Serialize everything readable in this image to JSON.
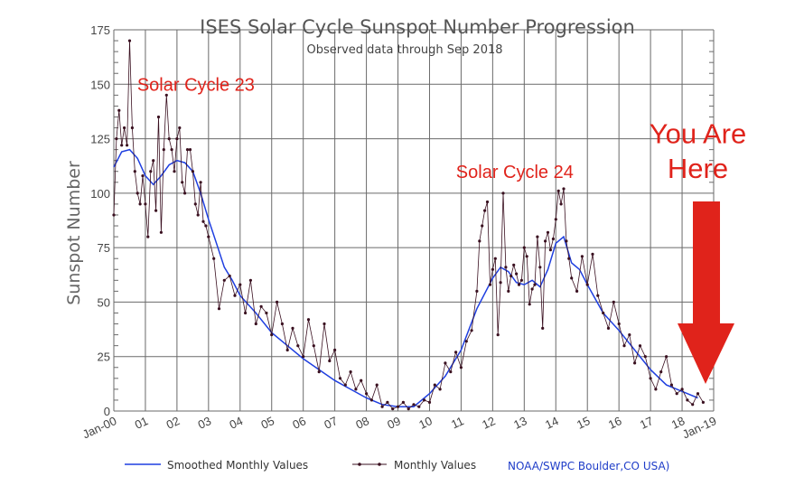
{
  "chart_data": {
    "type": "line",
    "title": "ISES Solar Cycle Sunspot Number Progression",
    "subtitle": "Observed data through Sep 2018",
    "ylabel": "Sunspot Number",
    "xlabel": "",
    "xlim": [
      2000.0,
      2019.0
    ],
    "ylim": [
      0,
      175
    ],
    "y_ticks": [
      0,
      25,
      50,
      75,
      100,
      125,
      150,
      175
    ],
    "x_ticks": [
      {
        "x": 2000,
        "label": "Jan-00"
      },
      {
        "x": 2001,
        "label": "01"
      },
      {
        "x": 2002,
        "label": "02"
      },
      {
        "x": 2003,
        "label": "03"
      },
      {
        "x": 2004,
        "label": "04"
      },
      {
        "x": 2005,
        "label": "05"
      },
      {
        "x": 2006,
        "label": "06"
      },
      {
        "x": 2007,
        "label": "07"
      },
      {
        "x": 2008,
        "label": "08"
      },
      {
        "x": 2009,
        "label": "09"
      },
      {
        "x": 2010,
        "label": "10"
      },
      {
        "x": 2011,
        "label": "11"
      },
      {
        "x": 2012,
        "label": "12"
      },
      {
        "x": 2013,
        "label": "13"
      },
      {
        "x": 2014,
        "label": "14"
      },
      {
        "x": 2015,
        "label": "15"
      },
      {
        "x": 2016,
        "label": "16"
      },
      {
        "x": 2017,
        "label": "17"
      },
      {
        "x": 2018,
        "label": "18"
      },
      {
        "x": 2019,
        "label": "Jan-19"
      }
    ],
    "grid": true,
    "legend_position": "bottom",
    "series": [
      {
        "name": "Smoothed Monthly Values",
        "color": "#1f3fe0",
        "x": [
          2000.0,
          2000.25,
          2000.5,
          2000.75,
          2001.0,
          2001.25,
          2001.5,
          2001.75,
          2002.0,
          2002.25,
          2002.5,
          2002.75,
          2003.0,
          2003.25,
          2003.5,
          2003.75,
          2004.0,
          2004.5,
          2005.0,
          2005.5,
          2006.0,
          2006.5,
          2007.0,
          2007.5,
          2008.0,
          2008.5,
          2009.0,
          2009.5,
          2010.0,
          2010.5,
          2011.0,
          2011.5,
          2012.0,
          2012.25,
          2012.5,
          2012.75,
          2013.0,
          2013.25,
          2013.5,
          2013.75,
          2014.0,
          2014.25,
          2014.5,
          2014.75,
          2015.0,
          2015.5,
          2016.0,
          2016.5,
          2017.0,
          2017.5,
          2018.0,
          2018.5
        ],
        "values": [
          112,
          119,
          120,
          116,
          108,
          104,
          108,
          113,
          115,
          114,
          110,
          100,
          88,
          77,
          66,
          60,
          53,
          45,
          36,
          30,
          24,
          19,
          14,
          10,
          6,
          3,
          2,
          2,
          8,
          16,
          28,
          47,
          61,
          66,
          64,
          59,
          58,
          60,
          57,
          65,
          77,
          80,
          68,
          65,
          58,
          45,
          37,
          28,
          19,
          12,
          9,
          6
        ]
      },
      {
        "name": "Monthly Values",
        "color": "#3a1020",
        "x": [
          2000.0,
          2000.083,
          2000.167,
          2000.25,
          2000.333,
          2000.417,
          2000.5,
          2000.583,
          2000.667,
          2000.75,
          2000.833,
          2000.917,
          2001.0,
          2001.083,
          2001.167,
          2001.25,
          2001.333,
          2001.417,
          2001.5,
          2001.583,
          2001.667,
          2001.75,
          2001.833,
          2001.917,
          2002.0,
          2002.083,
          2002.167,
          2002.25,
          2002.333,
          2002.417,
          2002.5,
          2002.583,
          2002.667,
          2002.75,
          2002.833,
          2002.917,
          2003.0,
          2003.167,
          2003.333,
          2003.5,
          2003.667,
          2003.833,
          2004.0,
          2004.167,
          2004.333,
          2004.5,
          2004.667,
          2004.833,
          2005.0,
          2005.167,
          2005.333,
          2005.5,
          2005.667,
          2005.833,
          2006.0,
          2006.167,
          2006.333,
          2006.5,
          2006.667,
          2006.833,
          2007.0,
          2007.167,
          2007.333,
          2007.5,
          2007.667,
          2007.833,
          2008.0,
          2008.167,
          2008.333,
          2008.5,
          2008.667,
          2008.833,
          2009.0,
          2009.167,
          2009.333,
          2009.5,
          2009.667,
          2009.833,
          2010.0,
          2010.167,
          2010.333,
          2010.5,
          2010.667,
          2010.833,
          2011.0,
          2011.167,
          2011.333,
          2011.5,
          2011.583,
          2011.667,
          2011.75,
          2011.833,
          2011.917,
          2012.0,
          2012.083,
          2012.167,
          2012.25,
          2012.333,
          2012.417,
          2012.5,
          2012.583,
          2012.667,
          2012.75,
          2012.833,
          2012.917,
          2013.0,
          2013.083,
          2013.167,
          2013.25,
          2013.333,
          2013.417,
          2013.5,
          2013.583,
          2013.667,
          2013.75,
          2013.833,
          2013.917,
          2014.0,
          2014.083,
          2014.167,
          2014.25,
          2014.333,
          2014.417,
          2014.5,
          2014.667,
          2014.833,
          2015.0,
          2015.167,
          2015.333,
          2015.5,
          2015.667,
          2015.833,
          2016.0,
          2016.167,
          2016.333,
          2016.5,
          2016.667,
          2016.833,
          2017.0,
          2017.167,
          2017.333,
          2017.5,
          2017.667,
          2017.833,
          2018.0,
          2018.167,
          2018.333,
          2018.5,
          2018.667
        ],
        "values": [
          90,
          125,
          138,
          122,
          130,
          122,
          170,
          130,
          110,
          100,
          95,
          108,
          95,
          80,
          110,
          115,
          92,
          135,
          82,
          120,
          145,
          125,
          120,
          110,
          125,
          130,
          105,
          100,
          120,
          120,
          110,
          95,
          90,
          105,
          87,
          85,
          80,
          70,
          47,
          60,
          62,
          53,
          58,
          45,
          60,
          40,
          48,
          45,
          35,
          50,
          40,
          28,
          38,
          30,
          25,
          42,
          30,
          18,
          40,
          23,
          28,
          15,
          12,
          18,
          10,
          14,
          8,
          5,
          12,
          2,
          4,
          1,
          2,
          4,
          1,
          3,
          2,
          5,
          4,
          12,
          10,
          22,
          18,
          27,
          20,
          32,
          37,
          55,
          78,
          85,
          92,
          96,
          58,
          65,
          70,
          35,
          59,
          100,
          66,
          55,
          62,
          67,
          63,
          58,
          60,
          75,
          71,
          49,
          56,
          58,
          80,
          66,
          38,
          78,
          82,
          74,
          79,
          88,
          101,
          95,
          102,
          78,
          70,
          61,
          55,
          71,
          58,
          72,
          53,
          45,
          38,
          50,
          40,
          30,
          35,
          22,
          30,
          25,
          15,
          10,
          18,
          25,
          12,
          8,
          10,
          5,
          3,
          8,
          4
        ]
      }
    ],
    "annotations": [
      {
        "text": "Solar Cycle 23",
        "x": 2002.6,
        "y": 147
      },
      {
        "text": "Solar Cycle 24",
        "x": 2012.7,
        "y": 107
      },
      {
        "text": "You Are",
        "x": 2018.5,
        "y": 123
      },
      {
        "text": "Here",
        "x": 2018.5,
        "y": 107
      }
    ],
    "annotation_color": "#e0231b",
    "credit": "NOAA/SWPC Boulder,CO USA)"
  }
}
